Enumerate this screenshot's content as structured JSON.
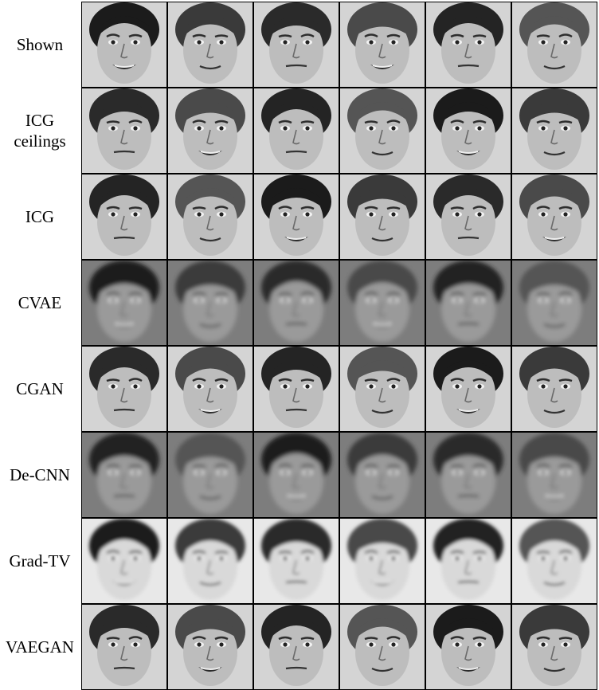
{
  "figure": {
    "columns": 6,
    "rows": [
      {
        "label": "Shown",
        "style": "sharp"
      },
      {
        "label": "ICG\nceilings",
        "style": "sharp"
      },
      {
        "label": "ICG",
        "style": "sharp"
      },
      {
        "label": "CVAE",
        "style": "blurry"
      },
      {
        "label": "CGAN",
        "style": "sharp"
      },
      {
        "label": "De-CNN",
        "style": "blurry"
      },
      {
        "label": "Grad-TV",
        "style": "washed"
      },
      {
        "label": "VAEGAN",
        "style": "sharp"
      }
    ]
  }
}
